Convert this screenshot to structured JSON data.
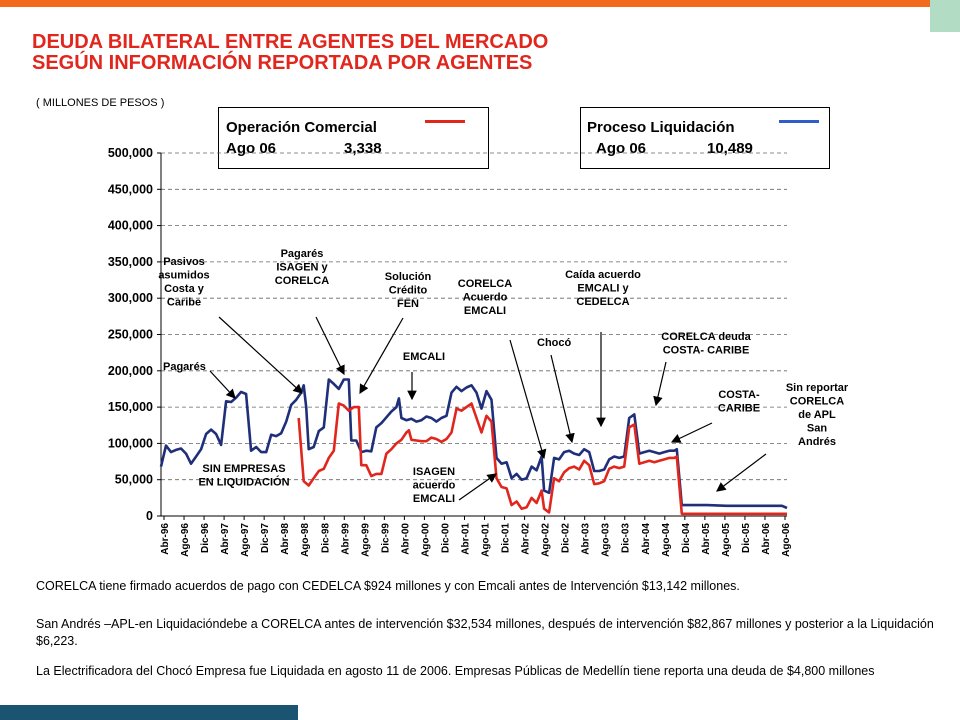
{
  "header": {
    "title_line1": "DEUDA BILATERAL ENTRE AGENTES DEL MERCADO",
    "title_line2": "SEGÚN INFORMACIÓN REPORTADA POR AGENTES",
    "units": "( MILLONES DE PESOS )"
  },
  "legend": {
    "commercial": {
      "title": "Operación Comercial",
      "period": "Ago 06",
      "value": "3,338",
      "color": "#e0261d"
    },
    "liquidation": {
      "title": "Proceso Liquidación",
      "period": "Ago 06",
      "value": "10,489",
      "color": "#2e5fc8"
    }
  },
  "chart_data": {
    "type": "line",
    "ylim": [
      0,
      500000
    ],
    "y_ticks": [
      "0",
      "50,000",
      "100,000",
      "150,000",
      "200,000",
      "250,000",
      "300,000",
      "350,000",
      "400,000",
      "450,000",
      "500,000"
    ],
    "y_tick_values": [
      0,
      50000,
      100000,
      150000,
      200000,
      250000,
      300000,
      350000,
      400000,
      450000,
      500000
    ],
    "x_tick_labels": [
      "Abr-96",
      "Ago-96",
      "Dic-96",
      "Abr-97",
      "Ago-97",
      "Dic-97",
      "Abr-98",
      "Ago-98",
      "Dic-98",
      "Abr-99",
      "Ago-99",
      "Dic-99",
      "Abr-00",
      "Ago-00",
      "Dic-00",
      "Abr-01",
      "Ago-01",
      "Dic-01",
      "Abr-02",
      "Ago-02",
      "Dic-02",
      "Abr-03",
      "Ago-03",
      "Dic-03",
      "Abr-04",
      "Ago-04",
      "Dic-04",
      "Abr-05",
      "Ago-05",
      "Dic-05",
      "Abr-06",
      "Ago-06"
    ],
    "grid": "horizontal dashed",
    "series": [
      {
        "name": "Proceso Liquidación",
        "color": "#1f2f7a",
        "points": [
          [
            0,
            68000
          ],
          [
            2,
            97000
          ],
          [
            4,
            88000
          ],
          [
            6,
            91000
          ],
          [
            8,
            93000
          ],
          [
            10,
            86000
          ],
          [
            12,
            72000
          ],
          [
            14,
            82000
          ],
          [
            16,
            92000
          ],
          [
            18,
            113000
          ],
          [
            20,
            119000
          ],
          [
            22,
            113000
          ],
          [
            24,
            98000
          ],
          [
            26,
            158000
          ],
          [
            28,
            157000
          ],
          [
            30,
            163000
          ],
          [
            32,
            171000
          ],
          [
            34,
            168000
          ],
          [
            36,
            90000
          ],
          [
            38,
            95000
          ],
          [
            40,
            88000
          ],
          [
            42,
            88000
          ],
          [
            44,
            112000
          ],
          [
            46,
            110000
          ],
          [
            48,
            114000
          ],
          [
            50,
            130000
          ],
          [
            52,
            153000
          ],
          [
            54,
            160000
          ],
          [
            56,
            170000
          ],
          [
            57,
            180000
          ],
          [
            58,
            150000
          ],
          [
            59,
            92000
          ],
          [
            61,
            95000
          ],
          [
            63,
            117000
          ],
          [
            65,
            122000
          ],
          [
            67,
            188000
          ],
          [
            69,
            182000
          ],
          [
            71,
            175000
          ],
          [
            73,
            188000
          ],
          [
            75,
            188000
          ],
          [
            76,
            104000
          ],
          [
            78,
            104000
          ],
          [
            80,
            88000
          ],
          [
            82,
            90000
          ],
          [
            84,
            89000
          ],
          [
            86,
            122000
          ],
          [
            88,
            128000
          ],
          [
            90,
            136000
          ],
          [
            92,
            144000
          ],
          [
            94,
            150000
          ],
          [
            95,
            162000
          ],
          [
            96,
            135000
          ],
          [
            98,
            132000
          ],
          [
            100,
            134000
          ],
          [
            102,
            130000
          ],
          [
            104,
            132000
          ],
          [
            106,
            137000
          ],
          [
            108,
            135000
          ],
          [
            110,
            130000
          ],
          [
            112,
            135000
          ],
          [
            114,
            138000
          ],
          [
            116,
            170000
          ],
          [
            118,
            178000
          ],
          [
            120,
            172000
          ],
          [
            122,
            177000
          ],
          [
            124,
            180000
          ],
          [
            126,
            170000
          ],
          [
            128,
            148000
          ],
          [
            130,
            172000
          ],
          [
            132,
            160000
          ],
          [
            134,
            80000
          ],
          [
            136,
            72000
          ],
          [
            138,
            74000
          ],
          [
            140,
            52000
          ],
          [
            142,
            58000
          ],
          [
            144,
            50000
          ],
          [
            146,
            52000
          ],
          [
            148,
            68000
          ],
          [
            150,
            63000
          ],
          [
            152,
            82000
          ],
          [
            153,
            35000
          ],
          [
            155,
            32000
          ],
          [
            157,
            80000
          ],
          [
            159,
            78000
          ],
          [
            161,
            88000
          ],
          [
            163,
            90000
          ],
          [
            165,
            86000
          ],
          [
            167,
            84000
          ],
          [
            169,
            92000
          ],
          [
            171,
            88000
          ],
          [
            173,
            62000
          ],
          [
            175,
            62000
          ],
          [
            177,
            64000
          ],
          [
            179,
            78000
          ],
          [
            181,
            82000
          ],
          [
            183,
            80000
          ],
          [
            185,
            82000
          ],
          [
            187,
            135000
          ],
          [
            189,
            140000
          ],
          [
            191,
            86000
          ],
          [
            193,
            88000
          ],
          [
            195,
            90000
          ],
          [
            197,
            88000
          ],
          [
            199,
            86000
          ],
          [
            201,
            88000
          ],
          [
            203,
            90000
          ],
          [
            205,
            90000
          ],
          [
            206,
            92000
          ],
          [
            208,
            15000
          ],
          [
            218,
            15000
          ],
          [
            226,
            14000
          ],
          [
            232,
            14000
          ],
          [
            240,
            14000
          ],
          [
            248,
            14000
          ],
          [
            250,
            11000
          ]
        ]
      },
      {
        "name": "Operación Comercial",
        "color": "#e0261d",
        "points": [
          [
            55,
            135000
          ],
          [
            57,
            48000
          ],
          [
            59,
            42000
          ],
          [
            61,
            52000
          ],
          [
            63,
            62000
          ],
          [
            65,
            65000
          ],
          [
            67,
            80000
          ],
          [
            69,
            90000
          ],
          [
            71,
            155000
          ],
          [
            73,
            152000
          ],
          [
            75,
            145000
          ],
          [
            77,
            150000
          ],
          [
            79,
            150000
          ],
          [
            80,
            70000
          ],
          [
            82,
            70000
          ],
          [
            84,
            55000
          ],
          [
            86,
            58000
          ],
          [
            88,
            58000
          ],
          [
            90,
            86000
          ],
          [
            92,
            92000
          ],
          [
            94,
            100000
          ],
          [
            96,
            105000
          ],
          [
            98,
            115000
          ],
          [
            99,
            118000
          ],
          [
            100,
            105000
          ],
          [
            102,
            104000
          ],
          [
            104,
            103000
          ],
          [
            106,
            103000
          ],
          [
            108,
            108000
          ],
          [
            110,
            106000
          ],
          [
            112,
            102000
          ],
          [
            114,
            106000
          ],
          [
            116,
            115000
          ],
          [
            118,
            148000
          ],
          [
            120,
            145000
          ],
          [
            122,
            150000
          ],
          [
            124,
            155000
          ],
          [
            126,
            135000
          ],
          [
            128,
            115000
          ],
          [
            130,
            138000
          ],
          [
            132,
            130000
          ],
          [
            134,
            52000
          ],
          [
            136,
            40000
          ],
          [
            138,
            38000
          ],
          [
            140,
            15000
          ],
          [
            142,
            20000
          ],
          [
            144,
            10000
          ],
          [
            146,
            12000
          ],
          [
            148,
            25000
          ],
          [
            150,
            18000
          ],
          [
            152,
            35000
          ],
          [
            153,
            10000
          ],
          [
            155,
            5000
          ],
          [
            157,
            52000
          ],
          [
            159,
            48000
          ],
          [
            161,
            60000
          ],
          [
            163,
            66000
          ],
          [
            165,
            68000
          ],
          [
            167,
            64000
          ],
          [
            169,
            76000
          ],
          [
            171,
            70000
          ],
          [
            173,
            44000
          ],
          [
            175,
            45000
          ],
          [
            177,
            48000
          ],
          [
            179,
            65000
          ],
          [
            181,
            68000
          ],
          [
            183,
            66000
          ],
          [
            185,
            68000
          ],
          [
            187,
            122000
          ],
          [
            189,
            126000
          ],
          [
            191,
            72000
          ],
          [
            193,
            74000
          ],
          [
            195,
            76000
          ],
          [
            197,
            74000
          ],
          [
            199,
            76000
          ],
          [
            201,
            78000
          ],
          [
            203,
            80000
          ],
          [
            205,
            80000
          ],
          [
            206,
            82000
          ],
          [
            208,
            3000
          ],
          [
            218,
            3000
          ],
          [
            232,
            3000
          ],
          [
            250,
            3000
          ]
        ]
      }
    ],
    "annotations": [
      {
        "key": "pasivos",
        "lines": [
          "Pasivos",
          "asumidos",
          "Costa  y",
          "Caribe"
        ]
      },
      {
        "key": "pagares",
        "lines": [
          "Pagarés"
        ]
      },
      {
        "key": "sin_empresas",
        "lines": [
          "SIN EMPRESAS",
          "EN LIQUIDACIÓN"
        ]
      },
      {
        "key": "pagares_isagen",
        "lines": [
          "Pagarés",
          "ISAGEN y",
          "CORELCA"
        ]
      },
      {
        "key": "solucion",
        "lines": [
          "Solución",
          "Crédito",
          "FEN"
        ]
      },
      {
        "key": "emcali",
        "lines": [
          "EMCALI"
        ]
      },
      {
        "key": "isagen_acuerdo",
        "lines": [
          "ISAGEN",
          "acuerdo",
          "EMCALI"
        ]
      },
      {
        "key": "corelca_acuerdo",
        "lines": [
          "CORELCA",
          "Acuerdo",
          "EMCALI"
        ]
      },
      {
        "key": "choco",
        "lines": [
          "Chocó"
        ]
      },
      {
        "key": "caida",
        "lines": [
          "Caída acuerdo",
          "EMCALI y",
          "CEDELCA"
        ]
      },
      {
        "key": "corelca_deuda",
        "lines": [
          "CORELCA  deuda",
          "COSTA- CARIBE"
        ]
      },
      {
        "key": "costa_caribe",
        "lines": [
          "COSTA-",
          "CARIBE"
        ]
      },
      {
        "key": "sin_reportar",
        "lines": [
          "Sin reportar",
          "CORELCA",
          "de APL",
          "San",
          "Andrés"
        ]
      }
    ]
  },
  "notes": {
    "note1": "CORELCA tiene firmado acuerdos de pago con CEDELCA $924 millones y con Emcali antes de Intervención $13,142 millones.",
    "note2": "San Andrés –APL-en Liquidacióndebe a CORELCA antes de intervención $32,534 millones, después de intervención $82,867 millones y posterior a la Liquidación $6,223.",
    "note3": "La Electrificadora del Chocó Empresa fue Liquidada en agosto 11 de 2006.  Empresas Públicas de Medellín tiene reporta una deuda de $4,800 millones"
  }
}
